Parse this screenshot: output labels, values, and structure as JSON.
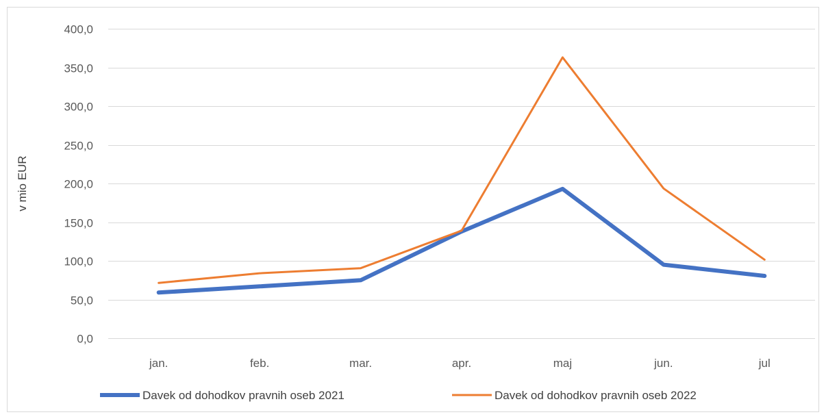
{
  "chart_data": {
    "type": "line",
    "categories": [
      "jan.",
      "feb.",
      "mar.",
      "apr.",
      "maj",
      "jun.",
      "jul"
    ],
    "series": [
      {
        "name": "Davek od dohodkov pravnih oseb 2021",
        "values": [
          59.0,
          67.0,
          75.0,
          138.0,
          193.0,
          95.0,
          80.5
        ],
        "color": "#4472C4"
      },
      {
        "name": "Davek od dohodkov pravnih oseb 2022",
        "values": [
          71.5,
          84.0,
          90.5,
          139.0,
          363.0,
          193.5,
          101.5
        ],
        "color": "#ED7D31"
      }
    ],
    "title": "",
    "xlabel": "",
    "ylabel": "v mio EUR",
    "ylim": [
      0,
      400
    ],
    "yticks": [
      0,
      50,
      100,
      150,
      200,
      250,
      300,
      350,
      400
    ],
    "ytick_labels": [
      "0,0",
      "50,0",
      "100,0",
      "150,0",
      "200,0",
      "250,0",
      "300,0",
      "350,0",
      "400,0"
    ],
    "grid": true,
    "gridline_color": "#D9D9D9",
    "legend_position": "bottom"
  }
}
